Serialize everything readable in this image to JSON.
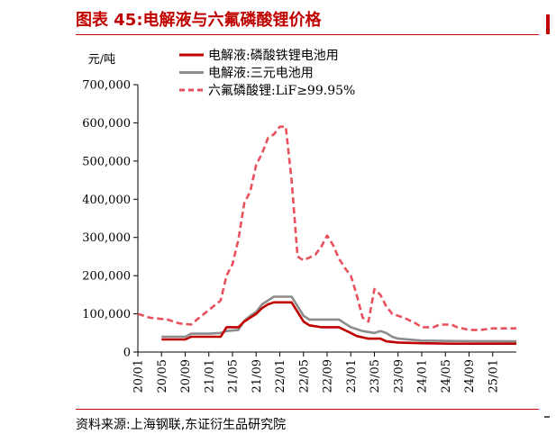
{
  "title": "图表 45:电解液与六氟磷酸锂价格",
  "source": "资料来源:上海钢联,东证衍生品研究院",
  "chart_data": {
    "type": "line",
    "title": "图表 45:电解液与六氟磷酸锂价格",
    "ylabel": "元/吨",
    "xlabel": "",
    "ylim": [
      0,
      700000
    ],
    "yticks": [
      0,
      100000,
      200000,
      300000,
      400000,
      500000,
      600000,
      700000
    ],
    "ytick_labels": [
      "0",
      "100,000",
      "200,000",
      "300,000",
      "400,000",
      "500,000",
      "600,000",
      "700,000"
    ],
    "x_range": [
      "20/01",
      "25/05"
    ],
    "xtick_labels": [
      "20/01",
      "20/05",
      "20/09",
      "21/01",
      "21/05",
      "21/09",
      "22/01",
      "22/05",
      "22/09",
      "23/01",
      "23/05",
      "23/09",
      "24/01",
      "24/05",
      "24/09",
      "25/01"
    ],
    "grid": false,
    "legend_position": "top",
    "series": [
      {
        "name": "电解液:磷酸铁锂电池用",
        "color": "#c00000",
        "style": "solid",
        "points": [
          [
            "20/05",
            33000
          ],
          [
            "20/09",
            33000
          ],
          [
            "20/10",
            40000
          ],
          [
            "21/01",
            40000
          ],
          [
            "21/03",
            40000
          ],
          [
            "21/04",
            65000
          ],
          [
            "21/06",
            65000
          ],
          [
            "21/07",
            80000
          ],
          [
            "21/08",
            90000
          ],
          [
            "21/09",
            100000
          ],
          [
            "21/10",
            115000
          ],
          [
            "21/11",
            125000
          ],
          [
            "21/12",
            130000
          ],
          [
            "22/01",
            130000
          ],
          [
            "22/03",
            130000
          ],
          [
            "22/04",
            105000
          ],
          [
            "22/05",
            80000
          ],
          [
            "22/06",
            70000
          ],
          [
            "22/08",
            65000
          ],
          [
            "22/11",
            65000
          ],
          [
            "23/01",
            50000
          ],
          [
            "23/02",
            42000
          ],
          [
            "23/04",
            35000
          ],
          [
            "23/06",
            35000
          ],
          [
            "23/07",
            28000
          ],
          [
            "23/09",
            25000
          ],
          [
            "24/01",
            23000
          ],
          [
            "24/06",
            22000
          ],
          [
            "25/05",
            22000
          ]
        ]
      },
      {
        "name": "电解液:三元电池用",
        "color": "#8c8c8c",
        "style": "solid",
        "points": [
          [
            "20/05",
            40000
          ],
          [
            "20/09",
            40000
          ],
          [
            "20/10",
            48000
          ],
          [
            "21/01",
            48000
          ],
          [
            "21/03",
            50000
          ],
          [
            "21/04",
            55000
          ],
          [
            "21/06",
            58000
          ],
          [
            "21/07",
            82000
          ],
          [
            "21/08",
            95000
          ],
          [
            "21/09",
            105000
          ],
          [
            "21/10",
            125000
          ],
          [
            "21/11",
            135000
          ],
          [
            "21/12",
            145000
          ],
          [
            "22/01",
            145000
          ],
          [
            "22/03",
            145000
          ],
          [
            "22/04",
            120000
          ],
          [
            "22/05",
            95000
          ],
          [
            "22/06",
            85000
          ],
          [
            "22/08",
            85000
          ],
          [
            "22/11",
            85000
          ],
          [
            "22/12",
            75000
          ],
          [
            "23/01",
            65000
          ],
          [
            "23/03",
            55000
          ],
          [
            "23/05",
            50000
          ],
          [
            "23/06",
            55000
          ],
          [
            "23/07",
            50000
          ],
          [
            "23/08",
            40000
          ],
          [
            "23/09",
            35000
          ],
          [
            "24/01",
            30000
          ],
          [
            "24/06",
            29000
          ],
          [
            "25/05",
            28000
          ]
        ]
      },
      {
        "name": "六氟磷酸锂:LiF≥99.95%",
        "color": "#e8505b",
        "style": "dashed",
        "points": [
          [
            "20/01",
            100000
          ],
          [
            "20/03",
            90000
          ],
          [
            "20/06",
            85000
          ],
          [
            "20/08",
            75000
          ],
          [
            "20/10",
            72000
          ],
          [
            "20/11",
            85000
          ],
          [
            "21/01",
            110000
          ],
          [
            "21/03",
            135000
          ],
          [
            "21/04",
            200000
          ],
          [
            "21/05",
            230000
          ],
          [
            "21/06",
            295000
          ],
          [
            "21/07",
            390000
          ],
          [
            "21/08",
            420000
          ],
          [
            "21/09",
            490000
          ],
          [
            "21/10",
            520000
          ],
          [
            "21/11",
            560000
          ],
          [
            "21/12",
            570000
          ],
          [
            "22/01",
            590000
          ],
          [
            "22/02",
            590000
          ],
          [
            "22/03",
            450000
          ],
          [
            "22/04",
            250000
          ],
          [
            "22/05",
            240000
          ],
          [
            "22/07",
            255000
          ],
          [
            "22/08",
            275000
          ],
          [
            "22/09",
            305000
          ],
          [
            "22/10",
            280000
          ],
          [
            "22/11",
            245000
          ],
          [
            "22/12",
            220000
          ],
          [
            "23/01",
            200000
          ],
          [
            "23/02",
            150000
          ],
          [
            "23/03",
            90000
          ],
          [
            "23/04",
            80000
          ],
          [
            "23/05",
            165000
          ],
          [
            "23/06",
            150000
          ],
          [
            "23/07",
            120000
          ],
          [
            "23/08",
            100000
          ],
          [
            "23/10",
            90000
          ],
          [
            "23/12",
            75000
          ],
          [
            "24/01",
            65000
          ],
          [
            "24/03",
            65000
          ],
          [
            "24/04",
            72000
          ],
          [
            "24/06",
            72000
          ],
          [
            "24/07",
            65000
          ],
          [
            "24/09",
            58000
          ],
          [
            "24/11",
            58000
          ],
          [
            "25/01",
            62000
          ],
          [
            "25/02",
            62000
          ],
          [
            "25/05",
            62000
          ]
        ]
      }
    ]
  }
}
